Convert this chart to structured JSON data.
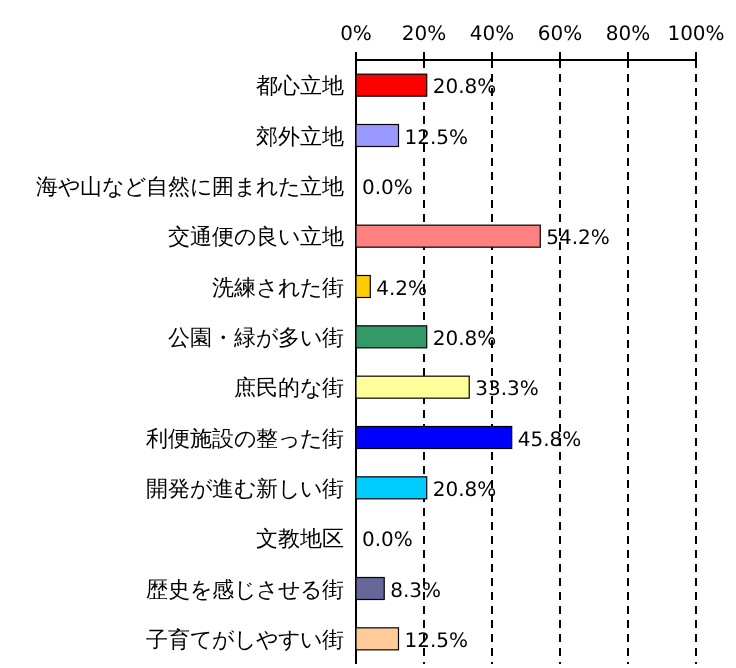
{
  "chart_data": {
    "type": "bar",
    "orientation": "horizontal",
    "categories": [
      "都心立地",
      "郊外立地",
      "海や山など自然に囲まれた立地",
      "交通便の良い立地",
      "洗練された街",
      "公園・緑が多い街",
      "庶民的な街",
      "利便施設の整った街",
      "開発が進む新しい街",
      "文教地区",
      "歴史を感じさせる街",
      "子育てがしやすい街"
    ],
    "values": [
      20.8,
      12.5,
      0.0,
      54.2,
      4.2,
      20.8,
      33.3,
      45.8,
      20.8,
      0.0,
      8.3,
      12.5
    ],
    "colors": [
      "#ff0000",
      "#9999ff",
      "#993366",
      "#ff8080",
      "#ffcc00",
      "#339966",
      "#ffff99",
      "#0000ff",
      "#00ccff",
      "#808080",
      "#666699",
      "#ffcc99"
    ],
    "value_labels": [
      "20.8%",
      "12.5%",
      "0.0%",
      "54.2%",
      "4.2%",
      "20.8%",
      "33.3%",
      "45.8%",
      "20.8%",
      "0.0%",
      "8.3%",
      "12.5%"
    ],
    "xlim": [
      0,
      100
    ],
    "xticks": [
      {
        "value": 0,
        "label": "0%"
      },
      {
        "value": 20,
        "label": "20%"
      },
      {
        "value": 40,
        "label": "40%"
      },
      {
        "value": 60,
        "label": "60%"
      },
      {
        "value": 80,
        "label": "80%"
      },
      {
        "value": 100,
        "label": "100%"
      }
    ],
    "grid": "x"
  }
}
